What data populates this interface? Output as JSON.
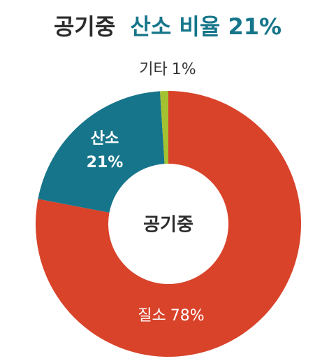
{
  "chart_data": {
    "type": "donut",
    "title": "공기중",
    "title_highlight": "산소 비율 21%",
    "center_label": "공기중",
    "categories": [
      "질소",
      "산소",
      "기타"
    ],
    "values": [
      78,
      21,
      1
    ],
    "value_labels": [
      "78%",
      "21%",
      "1%"
    ],
    "colors": [
      "#d8432a",
      "#16758a",
      "#a3c232"
    ],
    "title_color": "#2b2b2b",
    "highlight_color": "#16758a"
  }
}
